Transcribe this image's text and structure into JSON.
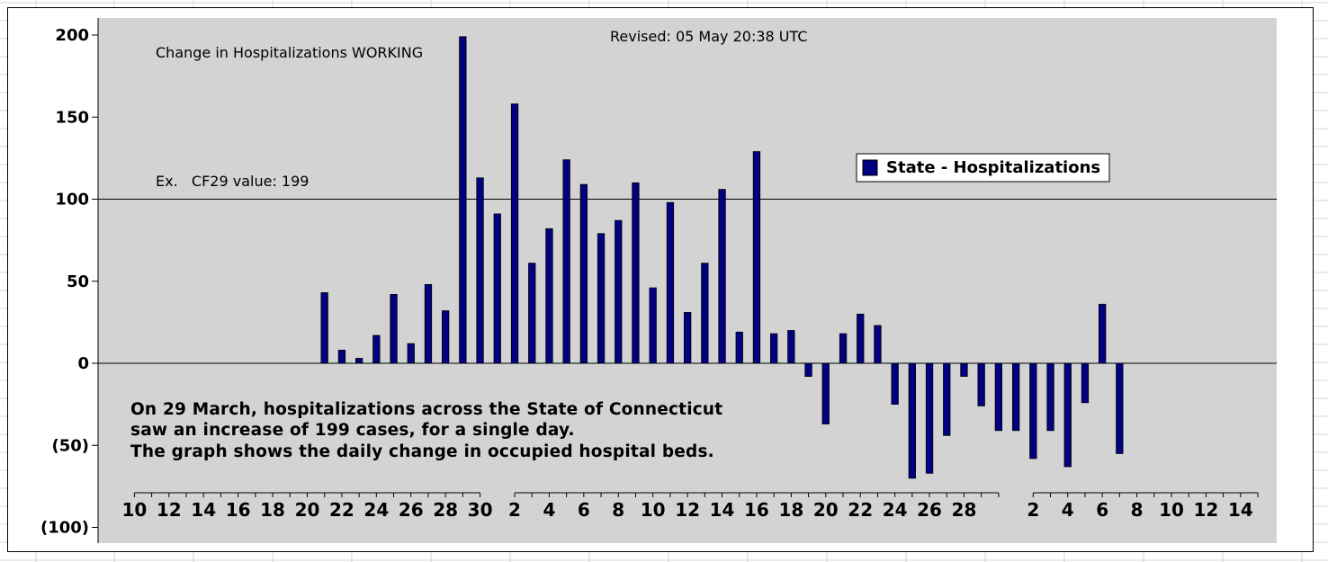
{
  "annotations": {
    "title": "Change in Hospitalizations WORKING",
    "revised": "Revised: 05 May 20:38 UTC",
    "example": "Ex.   CF29 value: 199",
    "note_lines": [
      "On 29 March, hospitalizations across the State of Connecticut",
      "saw an increase of 199 cases, for a single day.",
      "The graph shows the daily change in occupied hospital beds."
    ]
  },
  "chart_data": {
    "type": "bar",
    "ylim": [
      -110,
      200
    ],
    "yticks": [
      {
        "value": 200,
        "label": "200"
      },
      {
        "value": 150,
        "label": "150"
      },
      {
        "value": 100,
        "label": "100"
      },
      {
        "value": 50,
        "label": "50"
      },
      {
        "value": 0,
        "label": "0"
      },
      {
        "value": -50,
        "label": "(50)"
      },
      {
        "value": -100,
        "label": "(100)"
      }
    ],
    "gridlines_y": [
      100,
      0
    ],
    "legend": {
      "placement": "right",
      "entries": [
        {
          "name": "State - Hospitalizations",
          "color": "#000080"
        }
      ]
    },
    "series": [
      {
        "name": "State - Hospitalizations",
        "color": "#000080",
        "points": [
          {
            "x": "2020-03-21",
            "y": 43
          },
          {
            "x": "2020-03-22",
            "y": 8
          },
          {
            "x": "2020-03-23",
            "y": 3
          },
          {
            "x": "2020-03-24",
            "y": 17
          },
          {
            "x": "2020-03-25",
            "y": 42
          },
          {
            "x": "2020-03-26",
            "y": 12
          },
          {
            "x": "2020-03-27",
            "y": 48
          },
          {
            "x": "2020-03-28",
            "y": 32
          },
          {
            "x": "2020-03-29",
            "y": 199
          },
          {
            "x": "2020-03-30",
            "y": 113
          },
          {
            "x": "2020-03-31",
            "y": 91
          },
          {
            "x": "2020-04-01",
            "y": 158
          },
          {
            "x": "2020-04-02",
            "y": 61
          },
          {
            "x": "2020-04-03",
            "y": 82
          },
          {
            "x": "2020-04-04",
            "y": 124
          },
          {
            "x": "2020-04-05",
            "y": 109
          },
          {
            "x": "2020-04-06",
            "y": 79
          },
          {
            "x": "2020-04-07",
            "y": 87
          },
          {
            "x": "2020-04-08",
            "y": 110
          },
          {
            "x": "2020-04-09",
            "y": 46
          },
          {
            "x": "2020-04-10",
            "y": 98
          },
          {
            "x": "2020-04-11",
            "y": 31
          },
          {
            "x": "2020-04-12",
            "y": 61
          },
          {
            "x": "2020-04-13",
            "y": 106
          },
          {
            "x": "2020-04-14",
            "y": 19
          },
          {
            "x": "2020-04-15",
            "y": 129
          },
          {
            "x": "2020-04-16",
            "y": 18
          },
          {
            "x": "2020-04-17",
            "y": 20
          },
          {
            "x": "2020-04-18",
            "y": -8
          },
          {
            "x": "2020-04-19",
            "y": -37
          },
          {
            "x": "2020-04-20",
            "y": 18
          },
          {
            "x": "2020-04-21",
            "y": 30
          },
          {
            "x": "2020-04-22",
            "y": 23
          },
          {
            "x": "2020-04-23",
            "y": -25
          },
          {
            "x": "2020-04-24",
            "y": -70
          },
          {
            "x": "2020-04-25",
            "y": -67
          },
          {
            "x": "2020-04-26",
            "y": -44
          },
          {
            "x": "2020-04-27",
            "y": -8
          },
          {
            "x": "2020-04-28",
            "y": -26
          },
          {
            "x": "2020-04-29",
            "y": -41
          },
          {
            "x": "2020-04-30",
            "y": -41
          },
          {
            "x": "2020-05-01",
            "y": -58
          },
          {
            "x": "2020-05-02",
            "y": -41
          },
          {
            "x": "2020-05-03",
            "y": -63
          },
          {
            "x": "2020-05-04",
            "y": -24
          },
          {
            "x": "2020-05-05",
            "y": 36
          },
          {
            "x": "2020-05-06",
            "y": -55
          }
        ]
      }
    ],
    "xaxis_segments": [
      {
        "start": "2020-03-10",
        "end": "2020-03-30",
        "labels": [
          "10",
          "12",
          "14",
          "16",
          "18",
          "20",
          "22",
          "24",
          "26",
          "28",
          "30"
        ]
      },
      {
        "start": "2020-04-01",
        "end": "2020-04-29",
        "labels": [
          "2",
          "4",
          "6",
          "8",
          "10",
          "12",
          "14",
          "16",
          "18",
          "20",
          "22",
          "24",
          "26",
          "28"
        ]
      },
      {
        "start": "2020-05-01",
        "end": "2020-05-14",
        "labels": [
          "2",
          "4",
          "6",
          "8",
          "10",
          "12",
          "14"
        ]
      }
    ]
  }
}
